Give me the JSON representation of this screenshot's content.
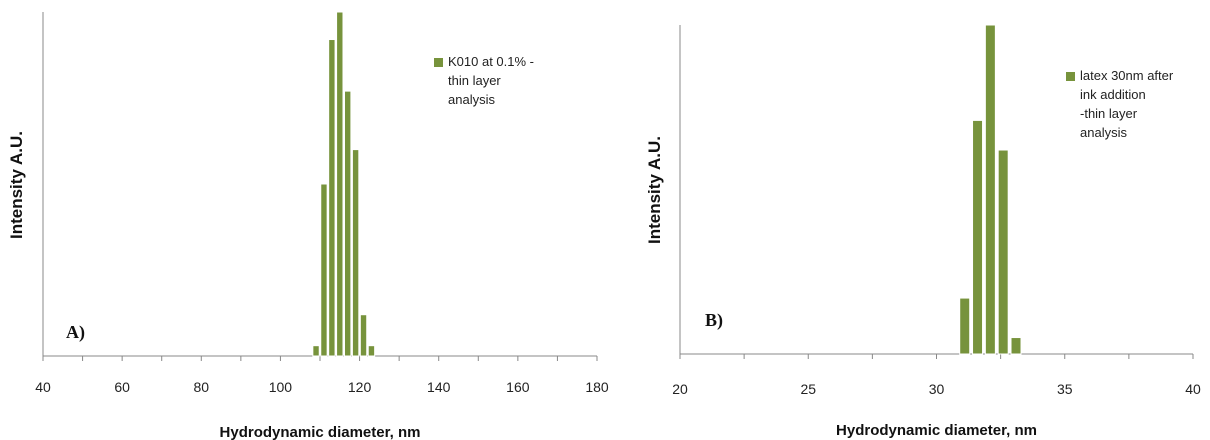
{
  "chart_data": [
    {
      "type": "bar",
      "panel_label": "A)",
      "xlabel": "Hydrodynamic diameter, nm",
      "ylabel": "Intensity A.U.",
      "xlim": [
        40,
        180
      ],
      "ylim": [
        0,
        1.0
      ],
      "xticks": [
        40,
        60,
        80,
        100,
        120,
        140,
        160,
        180
      ],
      "grid": false,
      "legend_position": "top-right",
      "series": [
        {
          "name": "K010 at 0.1% - thin layer analysis",
          "color": "#77933C",
          "x": [
            109,
            111,
            113,
            115,
            117,
            119,
            121,
            123
          ],
          "values": [
            0.03,
            0.5,
            0.92,
            1.0,
            0.77,
            0.6,
            0.12,
            0.03
          ]
        }
      ]
    },
    {
      "type": "bar",
      "panel_label": "B)",
      "xlabel": "Hydrodynamic diameter, nm",
      "ylabel": "Intensity A.U.",
      "xlim": [
        20,
        40
      ],
      "ylim": [
        0,
        1.0
      ],
      "xticks": [
        20,
        25,
        30,
        35,
        40
      ],
      "grid": false,
      "legend_position": "top-right",
      "series": [
        {
          "name": "latex 30nm after ink addition -thin layer analysis",
          "color": "#77933C",
          "x": [
            31.1,
            31.6,
            32.1,
            32.6,
            33.1
          ],
          "values": [
            0.17,
            0.71,
            1.0,
            0.62,
            0.05
          ]
        }
      ]
    }
  ]
}
